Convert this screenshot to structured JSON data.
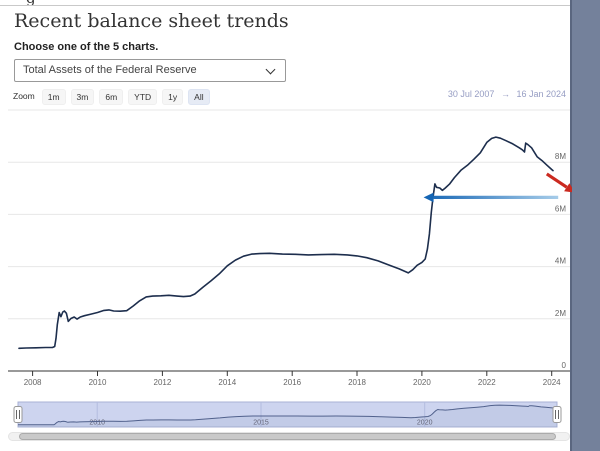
{
  "page": {
    "top_partial_text": "g",
    "heading": "Recent balance sheet trends",
    "chooser_label": "Choose one of the 5 charts.",
    "select_value": "Total Assets of the Federal Reserve"
  },
  "toolbar": {
    "zoom_label": "Zoom",
    "buttons": [
      "1m",
      "3m",
      "6m",
      "YTD",
      "1y",
      "All"
    ],
    "selected": "All",
    "range_from": "30 Jul 2007",
    "range_arrow": "→",
    "range_to": "16 Jan 2024"
  },
  "chart_data": {
    "type": "line",
    "title": "",
    "series_name": "Total Assets of the Federal Reserve",
    "series_color": "#1d2e4d",
    "x_range": [
      2007.58,
      2024.04
    ],
    "y_range": [
      0,
      10000000
    ],
    "x_ticks": [
      2008,
      2010,
      2012,
      2014,
      2016,
      2018,
      2020,
      2022,
      2024
    ],
    "y_ticks": [
      {
        "v": 0,
        "label": "0"
      },
      {
        "v": 2000000,
        "label": "2M"
      },
      {
        "v": 4000000,
        "label": "4M"
      },
      {
        "v": 6000000,
        "label": "6M"
      },
      {
        "v": 8000000,
        "label": "8M"
      },
      {
        "v": 10000000,
        "label": ""
      }
    ],
    "grid": true,
    "legend": "none",
    "points": [
      [
        2007.58,
        870000
      ],
      [
        2007.8,
        880000
      ],
      [
        2008.1,
        890000
      ],
      [
        2008.4,
        900000
      ],
      [
        2008.62,
        905000
      ],
      [
        2008.68,
        940000
      ],
      [
        2008.72,
        1250000
      ],
      [
        2008.76,
        1770000
      ],
      [
        2008.82,
        2240000
      ],
      [
        2008.87,
        2080000
      ],
      [
        2008.93,
        2260000
      ],
      [
        2008.98,
        2300000
      ],
      [
        2009.04,
        2210000
      ],
      [
        2009.1,
        1900000
      ],
      [
        2009.18,
        2010000
      ],
      [
        2009.28,
        2070000
      ],
      [
        2009.37,
        1990000
      ],
      [
        2009.47,
        2070000
      ],
      [
        2009.6,
        2120000
      ],
      [
        2009.8,
        2180000
      ],
      [
        2010.0,
        2240000
      ],
      [
        2010.2,
        2320000
      ],
      [
        2010.35,
        2340000
      ],
      [
        2010.5,
        2300000
      ],
      [
        2010.7,
        2290000
      ],
      [
        2010.9,
        2310000
      ],
      [
        2011.1,
        2490000
      ],
      [
        2011.3,
        2690000
      ],
      [
        2011.5,
        2840000
      ],
      [
        2011.7,
        2870000
      ],
      [
        2011.95,
        2880000
      ],
      [
        2012.2,
        2900000
      ],
      [
        2012.45,
        2870000
      ],
      [
        2012.65,
        2850000
      ],
      [
        2012.85,
        2870000
      ],
      [
        2013.0,
        2950000
      ],
      [
        2013.25,
        3210000
      ],
      [
        2013.5,
        3460000
      ],
      [
        2013.75,
        3720000
      ],
      [
        2014.0,
        4030000
      ],
      [
        2014.25,
        4250000
      ],
      [
        2014.5,
        4400000
      ],
      [
        2014.75,
        4480000
      ],
      [
        2015.0,
        4500000
      ],
      [
        2015.3,
        4510000
      ],
      [
        2015.7,
        4480000
      ],
      [
        2016.1,
        4470000
      ],
      [
        2016.5,
        4450000
      ],
      [
        2016.9,
        4460000
      ],
      [
        2017.3,
        4470000
      ],
      [
        2017.7,
        4450000
      ],
      [
        2018.0,
        4410000
      ],
      [
        2018.3,
        4340000
      ],
      [
        2018.65,
        4220000
      ],
      [
        2019.0,
        4050000
      ],
      [
        2019.3,
        3910000
      ],
      [
        2019.58,
        3760000
      ],
      [
        2019.72,
        3880000
      ],
      [
        2019.85,
        4050000
      ],
      [
        2020.0,
        4160000
      ],
      [
        2020.1,
        4290000
      ],
      [
        2020.17,
        4670000
      ],
      [
        2020.23,
        5250000
      ],
      [
        2020.29,
        6080000
      ],
      [
        2020.34,
        6650000
      ],
      [
        2020.4,
        7170000
      ],
      [
        2020.45,
        7040000
      ],
      [
        2020.55,
        7010000
      ],
      [
        2020.63,
        6920000
      ],
      [
        2020.72,
        7010000
      ],
      [
        2020.85,
        7160000
      ],
      [
        2021.0,
        7410000
      ],
      [
        2021.2,
        7690000
      ],
      [
        2021.4,
        7880000
      ],
      [
        2021.6,
        8110000
      ],
      [
        2021.8,
        8360000
      ],
      [
        2022.0,
        8760000
      ],
      [
        2022.15,
        8910000
      ],
      [
        2022.28,
        8960000
      ],
      [
        2022.42,
        8920000
      ],
      [
        2022.6,
        8820000
      ],
      [
        2022.8,
        8700000
      ],
      [
        2023.0,
        8550000
      ],
      [
        2023.1,
        8470000
      ],
      [
        2023.16,
        8390000
      ],
      [
        2023.2,
        8730000
      ],
      [
        2023.27,
        8670000
      ],
      [
        2023.38,
        8550000
      ],
      [
        2023.55,
        8210000
      ],
      [
        2023.7,
        8060000
      ],
      [
        2023.85,
        7890000
      ],
      [
        2024.0,
        7720000
      ],
      [
        2024.04,
        7680000
      ]
    ],
    "annotations": [
      {
        "name": "blue-left-arrow",
        "kind": "arrow",
        "color": "#1565b4",
        "color_tail": "#a6cce9",
        "from": {
          "t": 2024.2,
          "v": 6650000
        },
        "to": {
          "t": 2020.05,
          "v": 6650000
        }
      },
      {
        "name": "red-down-right-arrow",
        "kind": "arrow",
        "color": "#cb2a20",
        "color_tail": "#cb2a20",
        "from": {
          "t": 2023.85,
          "v": 7550000
        },
        "to": {
          "t": 2024.72,
          "v": 6830000
        }
      }
    ],
    "navigator": {
      "labels": [
        {
          "year": 2010,
          "label": "2010"
        },
        {
          "year": 2015,
          "label": "2015"
        },
        {
          "year": 2020,
          "label": "2020"
        }
      ],
      "background": "#cdd4ef",
      "line_color": "#51618c"
    }
  }
}
